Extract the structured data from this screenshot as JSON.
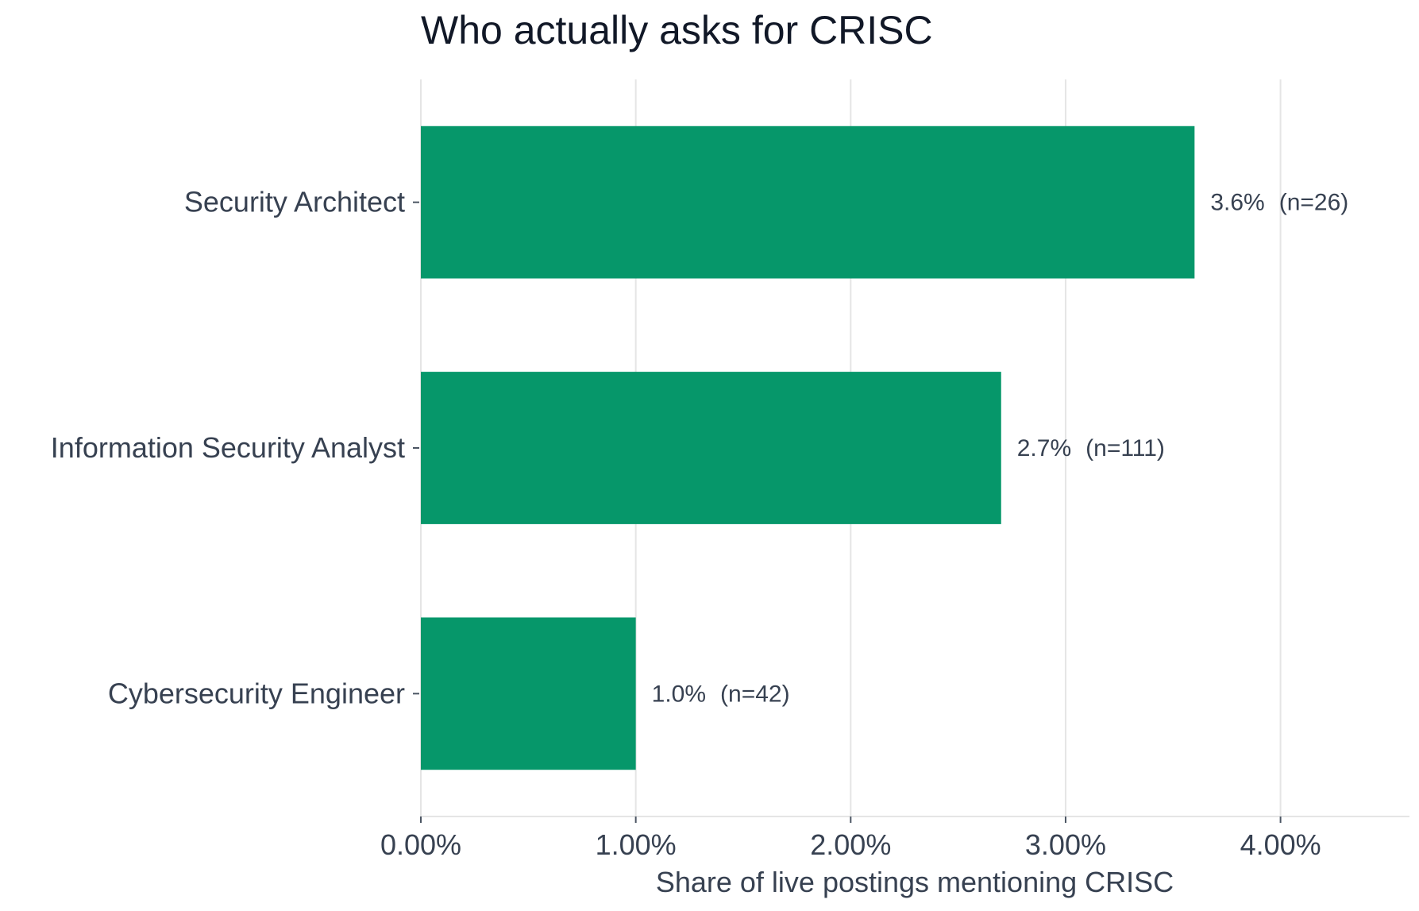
{
  "chart_data": {
    "type": "bar",
    "orientation": "horizontal",
    "title": "Who actually asks for CRISC",
    "xlabel": "Share of live postings mentioning CRISC",
    "ylabel": "",
    "categories": [
      "Security Architect",
      "Information Security Analyst",
      "Cybersecurity Engineer"
    ],
    "values": [
      3.6,
      2.7,
      1.0
    ],
    "value_labels": [
      "3.6%",
      "2.7%",
      "1.0%"
    ],
    "n_labels": [
      "(n=26)",
      "(n=111)",
      "(n=42)"
    ],
    "xlim": [
      0,
      4.6
    ],
    "xticks": [
      0,
      1,
      2,
      3,
      4
    ],
    "xtick_labels": [
      "0.00%",
      "1.00%",
      "2.00%",
      "3.00%",
      "4.00%"
    ],
    "grid": "vertical",
    "colors": {
      "bar": "#06976a",
      "grid": "#e5e5e5",
      "text": "#374151",
      "title": "#111827"
    }
  }
}
